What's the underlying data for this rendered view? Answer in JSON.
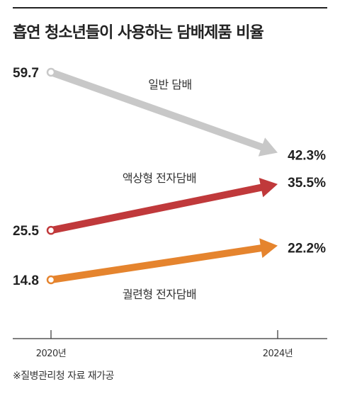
{
  "title": "흡연 청소년들이 사용하는 담배제품 비율",
  "source": "※질병관리청 자료 재가공",
  "chart_data": {
    "type": "line",
    "x": [
      "2020년",
      "2024년"
    ],
    "unit": "%",
    "grid": false,
    "legend": "none",
    "series": [
      {
        "name": "일반 담배",
        "values": [
          59.7,
          42.3
        ],
        "start_label": "59.7",
        "end_label": "42.3%",
        "color": "#c8c8c8"
      },
      {
        "name": "액상형 전자담배",
        "values": [
          25.5,
          35.5
        ],
        "start_label": "25.5",
        "end_label": "35.5%",
        "color": "#c0393b"
      },
      {
        "name": "궐련형 전자담배",
        "values": [
          14.8,
          22.2
        ],
        "start_label": "14.8",
        "end_label": "22.2%",
        "color": "#e5842e"
      }
    ]
  }
}
